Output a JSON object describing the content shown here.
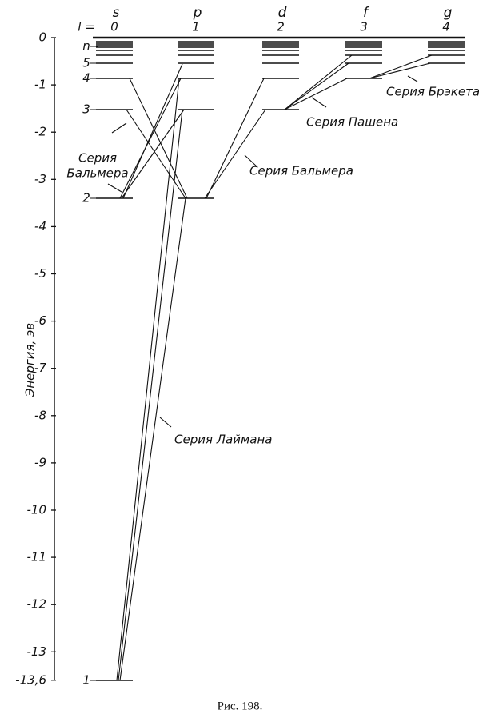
{
  "axis": {
    "label": "Энергия, эв",
    "ticks": [
      0,
      -1,
      -2,
      -3,
      -4,
      -5,
      -6,
      -7,
      -8,
      -9,
      -10,
      -11,
      -12,
      -13,
      {
        "value": -13.6,
        "label": "-13,6"
      }
    ]
  },
  "header": {
    "l_label": "l =",
    "columns": [
      {
        "symbol": "s",
        "l": "0"
      },
      {
        "symbol": "p",
        "l": "1"
      },
      {
        "symbol": "d",
        "l": "2"
      },
      {
        "symbol": "f",
        "l": "3"
      },
      {
        "symbol": "g",
        "l": "4"
      }
    ]
  },
  "level_labels": [
    "n",
    "5",
    "4",
    "3",
    "2",
    "1"
  ],
  "series_labels": {
    "balmer_left": [
      "Серия",
      "Бальмера"
    ],
    "balmer": "Серия Бальмера",
    "paschen": "Серия Пашена",
    "brackett": "Серия Брэкета",
    "lyman": "Серия Лаймана"
  },
  "caption": "Рис. 198."
}
